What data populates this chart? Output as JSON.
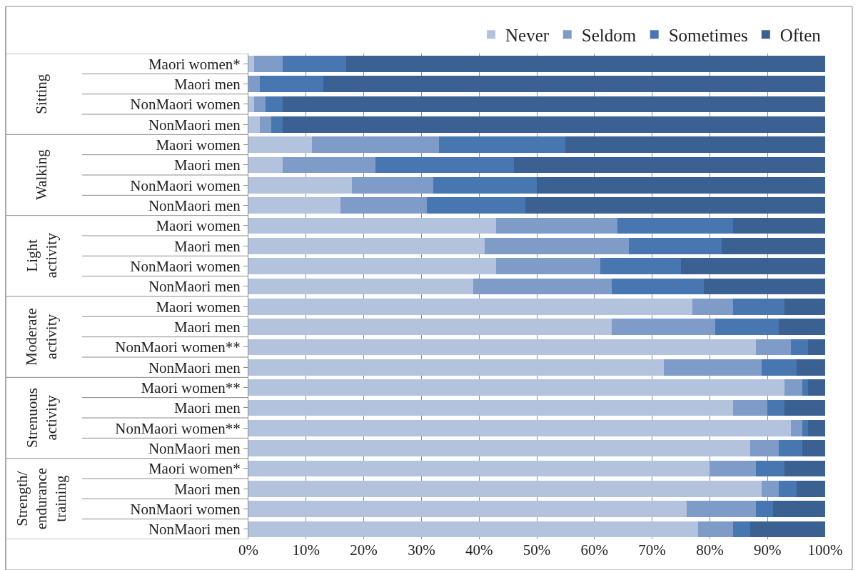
{
  "chart_data": {
    "type": "bar",
    "orientation": "horizontal",
    "stacked": true,
    "categories": [
      "Maori women*",
      "Maori men",
      "NonMaori women",
      "NonMaori men",
      "Maori women",
      "Maori men",
      "NonMaori women",
      "NonMaori men",
      "Maori women",
      "Maori men",
      "NonMaori women",
      "NonMaori men",
      "Maori women",
      "Maori men",
      "NonMaori women**",
      "NonMaori men",
      "Maori women**",
      "Maori men",
      "NonMaori women**",
      "NonMaori men",
      "Maori women*",
      "Maori men",
      "NonMaori women",
      "NonMaori men"
    ],
    "series": [
      {
        "name": "Never",
        "color": "#b4c3dd",
        "values": [
          1,
          0,
          1,
          2,
          11,
          6,
          18,
          16,
          43,
          41,
          43,
          39,
          77,
          63,
          88,
          72,
          93,
          84,
          94,
          87,
          80,
          89,
          76,
          78
        ]
      },
      {
        "name": "Seldom",
        "color": "#7f9bc8",
        "values": [
          5,
          2,
          2,
          2,
          22,
          16,
          14,
          15,
          21,
          25,
          18,
          24,
          7,
          18,
          6,
          17,
          3,
          6,
          2,
          5,
          8,
          3,
          12,
          6
        ]
      },
      {
        "name": "Sometimes",
        "color": "#4876b0",
        "values": [
          11,
          11,
          3,
          2,
          22,
          24,
          18,
          17,
          20,
          16,
          14,
          16,
          9,
          11,
          3,
          6,
          1,
          3,
          1,
          4,
          5,
          3,
          3,
          3
        ]
      },
      {
        "name": "Often",
        "color": "#3a6192",
        "values": [
          83,
          87,
          94,
          94,
          45,
          54,
          50,
          52,
          16,
          18,
          25,
          21,
          7,
          8,
          3,
          5,
          3,
          7,
          3,
          4,
          7,
          5,
          9,
          13
        ]
      }
    ],
    "annotations": [
      "Sitting",
      "Walking",
      "Light\nactivity",
      "Moderate\nactivity",
      "Strenuous\nactivity",
      "Strength/\nendurance\ntraining"
    ],
    "xlim": [
      0,
      100
    ],
    "xticks": [
      {
        "value": 0,
        "label": "0%"
      },
      {
        "value": 10,
        "label": "10%"
      },
      {
        "value": 20,
        "label": "20%"
      },
      {
        "value": 30,
        "label": "30%"
      },
      {
        "value": 40,
        "label": "40%"
      },
      {
        "value": 50,
        "label": "50%"
      },
      {
        "value": 60,
        "label": "60%"
      },
      {
        "value": 70,
        "label": "70%"
      },
      {
        "value": 80,
        "label": "80%"
      },
      {
        "value": 90,
        "label": "90%"
      },
      {
        "value": 100,
        "label": "100%"
      }
    ],
    "grid": "x",
    "legend": "top"
  }
}
